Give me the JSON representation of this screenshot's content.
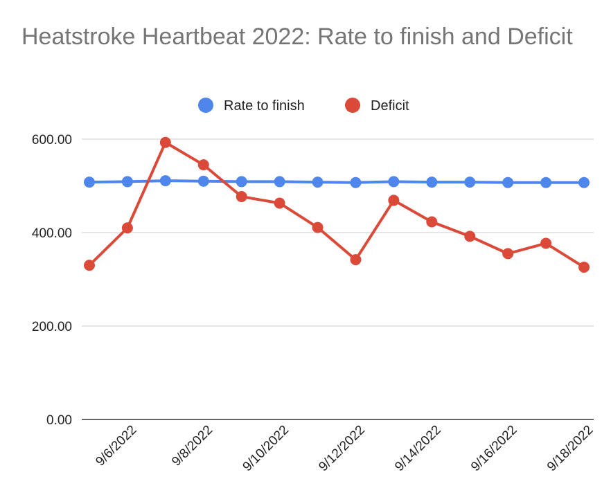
{
  "chart_data": {
    "type": "line",
    "title": "Heatstroke Heartbeat 2022: Rate to finish and Deficit",
    "xlabel": "",
    "ylabel": "",
    "ylim": [
      0,
      600
    ],
    "y_ticks": [
      "0.00",
      "200.00",
      "400.00",
      "600.00"
    ],
    "x": [
      "9/5/2022",
      "9/6/2022",
      "9/7/2022",
      "9/8/2022",
      "9/9/2022",
      "9/10/2022",
      "9/11/2022",
      "9/12/2022",
      "9/13/2022",
      "9/14/2022",
      "9/15/2022",
      "9/16/2022",
      "9/17/2022",
      "9/18/2022"
    ],
    "x_tick_labels": [
      "9/6/2022",
      "9/8/2022",
      "9/10/2022",
      "9/12/2022",
      "9/14/2022",
      "9/16/2022",
      "9/18/2022"
    ],
    "grid": true,
    "legend_position": "top",
    "series": [
      {
        "name": "Rate to finish",
        "color": "#4f86ec",
        "values": [
          508,
          509,
          511,
          510,
          509,
          509,
          508,
          507,
          509,
          508,
          508,
          507,
          507,
          507
        ]
      },
      {
        "name": "Deficit",
        "color": "#db4a39",
        "values": [
          330,
          410,
          593,
          545,
          477,
          463,
          411,
          342,
          469,
          423,
          392,
          355,
          377,
          326
        ]
      }
    ]
  }
}
